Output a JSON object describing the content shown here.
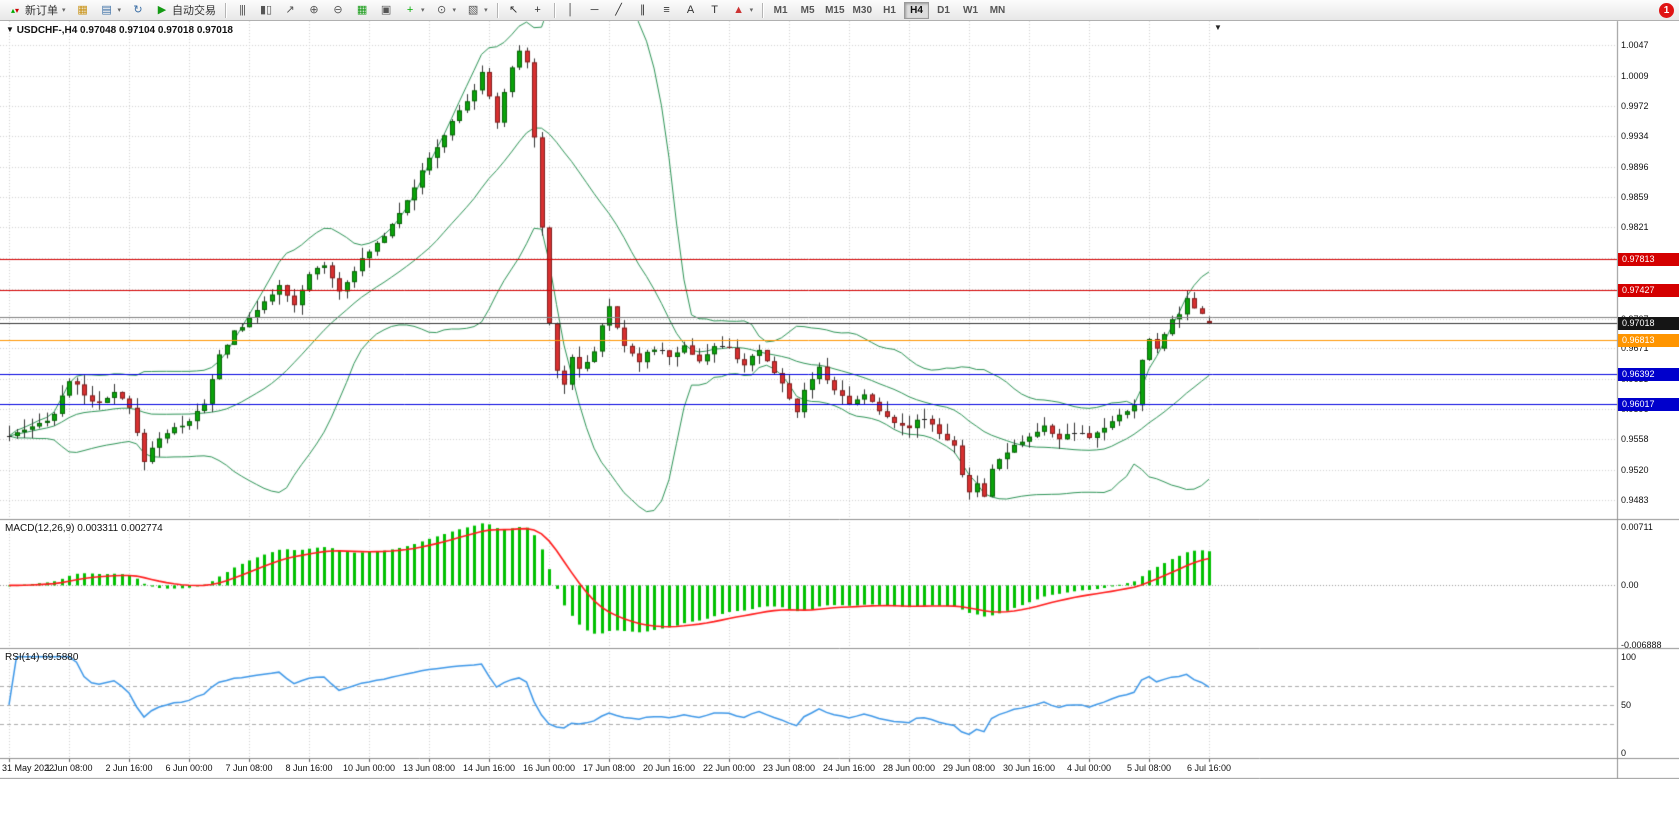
{
  "toolbar": {
    "notification_count": "1",
    "active_timeframe": "H4",
    "timeframes": [
      "M1",
      "M5",
      "M15",
      "M30",
      "H1",
      "H4",
      "D1",
      "W1",
      "MN"
    ],
    "items": [
      {
        "type": "button",
        "name": "new-order-button",
        "icon": "new-order-icon",
        "label": "新订单",
        "caret": true
      },
      {
        "type": "icon",
        "name": "chart-icon"
      },
      {
        "type": "icon",
        "name": "profiles-icon",
        "caret": true
      },
      {
        "type": "icon",
        "name": "refresh-icon"
      },
      {
        "type": "button",
        "name": "autotrading-button",
        "icon": "play-icon",
        "label": "自动交易"
      },
      {
        "type": "sep"
      },
      {
        "type": "icon",
        "name": "bar-chart-icon"
      },
      {
        "type": "icon",
        "name": "candlestick-chart-icon"
      },
      {
        "type": "icon",
        "name": "line-chart-icon"
      },
      {
        "type": "icon",
        "name": "zoom-in-icon"
      },
      {
        "type": "icon",
        "name": "zoom-out-icon"
      },
      {
        "type": "icon",
        "name": "tile-windows-icon"
      },
      {
        "type": "icon",
        "name": "cascade-windows-icon"
      },
      {
        "type": "icon",
        "name": "indicators-icon",
        "caret": true
      },
      {
        "type": "icon",
        "name": "periods-icon",
        "caret": true
      },
      {
        "type": "icon",
        "name": "templates-icon",
        "caret": true
      },
      {
        "type": "sep"
      },
      {
        "type": "icon",
        "name": "cursor-icon"
      },
      {
        "type": "icon",
        "name": "crosshair-icon"
      },
      {
        "type": "sep"
      },
      {
        "type": "icon",
        "name": "vertical-line-icon"
      },
      {
        "type": "icon",
        "name": "horizontal-line-icon"
      },
      {
        "type": "icon",
        "name": "trendline-icon"
      },
      {
        "type": "icon",
        "name": "equidistant-channel-icon"
      },
      {
        "type": "icon",
        "name": "fibonacci-icon"
      },
      {
        "type": "icon",
        "name": "text-icon"
      },
      {
        "type": "icon",
        "name": "text-label-icon"
      },
      {
        "type": "icon",
        "name": "arrows-icon",
        "caret": true
      },
      {
        "type": "sep"
      },
      {
        "type": "timeframes"
      }
    ]
  },
  "chart": {
    "symbol": "USDCHF-,H4",
    "ohlc_text": "0.97048 0.97104 0.97018 0.97018"
  },
  "chart_data": {
    "type": "candlestick+indicators",
    "symbol": "USDCHF",
    "timeframe": "H4",
    "bars_total": 161,
    "bars_per_tick": 8,
    "price_range_drawn": [
      0.9459,
      1.0077
    ],
    "price_axis_labels": [
      "1.0047",
      "1.0009",
      "0.9972",
      "0.9934",
      "0.9896",
      "0.9859",
      "0.9821",
      "0.9783",
      "0.9745",
      "0.9707",
      "0.9671",
      "0.9633",
      "0.9596",
      "0.9558",
      "0.9520",
      "0.9483"
    ],
    "x_axis_dates": [
      "31 May 2022",
      "1 Jun 08:00",
      "2 Jun 16:00",
      "6 Jun 00:00",
      "7 Jun 08:00",
      "8 Jun 16:00",
      "10 Jun 00:00",
      "13 Jun 08:00",
      "14 Jun 16:00",
      "16 Jun 00:00",
      "17 Jun 08:00",
      "20 Jun 16:00",
      "22 Jun 00:00",
      "23 Jun 08:00",
      "24 Jun 16:00",
      "28 Jun 00:00",
      "29 Jun 08:00",
      "30 Jun 16:00",
      "4 Jul 00:00",
      "5 Jul 08:00",
      "6 Jul 16:00"
    ],
    "last_bar_ohlc": [
      0.97048,
      0.97104,
      0.97018,
      0.97018
    ],
    "extremes": {
      "high_bar": 68,
      "high_price": 1.0047,
      "low_bar": 128,
      "low_price": 0.9483,
      "recent_high_bar": 157,
      "recent_high_price": 0.9742
    },
    "close_waypoints": [
      [
        0,
        0.9562
      ],
      [
        3,
        0.9571
      ],
      [
        6,
        0.959
      ],
      [
        8,
        0.9632
      ],
      [
        10,
        0.9614
      ],
      [
        12,
        0.96
      ],
      [
        14,
        0.9616
      ],
      [
        16,
        0.9596
      ],
      [
        18,
        0.9532
      ],
      [
        20,
        0.9561
      ],
      [
        22,
        0.9571
      ],
      [
        24,
        0.9582
      ],
      [
        26,
        0.9601
      ],
      [
        28,
        0.9662
      ],
      [
        30,
        0.9692
      ],
      [
        32,
        0.9706
      ],
      [
        34,
        0.9731
      ],
      [
        36,
        0.9747
      ],
      [
        38,
        0.9722
      ],
      [
        40,
        0.9763
      ],
      [
        42,
        0.9776
      ],
      [
        44,
        0.9742
      ],
      [
        46,
        0.9769
      ],
      [
        48,
        0.9791
      ],
      [
        50,
        0.9812
      ],
      [
        52,
        0.9841
      ],
      [
        54,
        0.9872
      ],
      [
        56,
        0.9906
      ],
      [
        58,
        0.9936
      ],
      [
        60,
        0.9966
      ],
      [
        62,
        0.9991
      ],
      [
        63,
        1.0011
      ],
      [
        64,
        0.9986
      ],
      [
        65,
        0.9952
      ],
      [
        66,
        0.9986
      ],
      [
        67,
        1.0021
      ],
      [
        68,
        1.004
      ],
      [
        69,
        1.0026
      ],
      [
        70,
        0.9931
      ],
      [
        71,
        0.9821
      ],
      [
        72,
        0.9701
      ],
      [
        73,
        0.9646
      ],
      [
        74,
        0.9626
      ],
      [
        75,
        0.9661
      ],
      [
        76,
        0.9646
      ],
      [
        78,
        0.9666
      ],
      [
        79,
        0.9701
      ],
      [
        80,
        0.9721
      ],
      [
        81,
        0.9696
      ],
      [
        82,
        0.9676
      ],
      [
        84,
        0.9656
      ],
      [
        86,
        0.9671
      ],
      [
        88,
        0.9661
      ],
      [
        90,
        0.9673
      ],
      [
        92,
        0.9656
      ],
      [
        94,
        0.9673
      ],
      [
        96,
        0.9669
      ],
      [
        98,
        0.9651
      ],
      [
        100,
        0.9666
      ],
      [
        102,
        0.9641
      ],
      [
        104,
        0.9611
      ],
      [
        105,
        0.9591
      ],
      [
        106,
        0.9621
      ],
      [
        108,
        0.9646
      ],
      [
        110,
        0.9621
      ],
      [
        112,
        0.9601
      ],
      [
        114,
        0.9616
      ],
      [
        116,
        0.9591
      ],
      [
        118,
        0.9581
      ],
      [
        120,
        0.9573
      ],
      [
        122,
        0.9586
      ],
      [
        124,
        0.9566
      ],
      [
        126,
        0.9551
      ],
      [
        127,
        0.9511
      ],
      [
        128,
        0.9491
      ],
      [
        129,
        0.9501
      ],
      [
        130,
        0.9489
      ],
      [
        131,
        0.9521
      ],
      [
        132,
        0.9536
      ],
      [
        134,
        0.9551
      ],
      [
        136,
        0.9561
      ],
      [
        138,
        0.9573
      ],
      [
        140,
        0.9559
      ],
      [
        142,
        0.9566
      ],
      [
        144,
        0.9559
      ],
      [
        146,
        0.9573
      ],
      [
        148,
        0.9586
      ],
      [
        150,
        0.9601
      ],
      [
        151,
        0.9656
      ],
      [
        152,
        0.9681
      ],
      [
        153,
        0.9671
      ],
      [
        154,
        0.9691
      ],
      [
        155,
        0.9706
      ],
      [
        156,
        0.9713
      ],
      [
        157,
        0.9736
      ],
      [
        158,
        0.9721
      ],
      [
        159,
        0.9716
      ],
      [
        160,
        0.9702
      ]
    ],
    "colors": {
      "up_candle": "#0aa30a",
      "down_candle": "#d83030",
      "wick": "#333333",
      "grid": "#d2d2d2",
      "band": "#2d9456"
    },
    "bollinger": {
      "period": 20,
      "deviation": 2
    },
    "hlines": [
      {
        "price": 0.97813,
        "color": "#d40000",
        "badge": "0.97813",
        "badge_bg": "#d40000"
      },
      {
        "price": 0.97427,
        "color": "#d40000",
        "badge": "0.97427",
        "badge_bg": "#d40000"
      },
      {
        "price": 0.971,
        "color": "#808080",
        "badge": null
      },
      {
        "price": 0.97018,
        "color": "#333333",
        "badge": "0.97018",
        "badge_bg": "#151515",
        "current": true
      },
      {
        "price": 0.96813,
        "color": "#ff9500",
        "badge": "0.96813",
        "badge_bg": "#ff9500"
      },
      {
        "price": 0.96392,
        "color": "#0000e0",
        "badge": "0.96392",
        "badge_bg": "#0000cc"
      },
      {
        "price": 0.96017,
        "color": "#0000e0",
        "badge": "0.96017",
        "badge_bg": "#0000cc"
      }
    ],
    "macd": {
      "label": "MACD(12,26,9)",
      "values_text": "0.003311 0.002774",
      "fast": 12,
      "slow": 26,
      "signal": 9,
      "axis_labels": [
        "0.00711",
        "0.00",
        "-0.006888"
      ],
      "range": [
        -0.0069,
        0.00711
      ],
      "histogram_color": "#00c000",
      "signal_color": "#ff1a1a"
    },
    "rsi": {
      "label": "RSI(14)",
      "value_text": "69.5880",
      "period": 14,
      "axis_labels": [
        "100",
        "50",
        "0"
      ],
      "levels": [
        70,
        50,
        30
      ],
      "line_color": "#3d97e8"
    }
  }
}
